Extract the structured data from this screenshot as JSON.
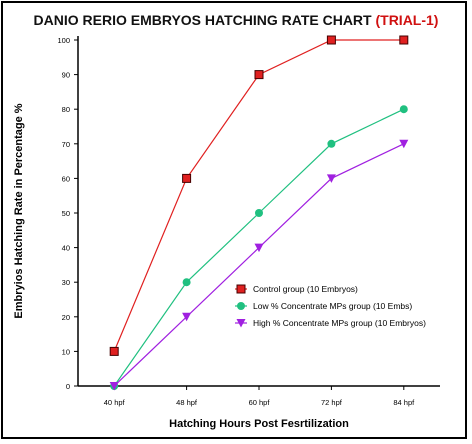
{
  "chart_data": {
    "type": "line",
    "title": "DANIO RERIO EMBRYOS HATCHING RATE CHART",
    "title_suffix": "(TRIAL-1)",
    "xlabel": "Hatching Hours Post  Fesrtilization",
    "ylabel": "Embryios Hatching Rate in Percentage %",
    "categories": [
      "40 hpf",
      "48 hpf",
      "60 hpf",
      "72 hpf",
      "84 hpf"
    ],
    "ylim": [
      0,
      100
    ],
    "yticks": [
      0,
      10,
      20,
      30,
      40,
      50,
      60,
      70,
      80,
      90,
      100
    ],
    "grid": false,
    "legend_position": "lower-right",
    "series": [
      {
        "name": "Control group (10 Embryos)",
        "values": [
          10,
          60,
          90,
          100,
          100
        ],
        "color": "#e02020",
        "marker": "square"
      },
      {
        "name": "Low % Concentrate MPs group (10 Embs)",
        "values": [
          0,
          30,
          50,
          70,
          80
        ],
        "color": "#20c080",
        "marker": "circle"
      },
      {
        "name": "High % Concentrate MPs group (10 Embryos)",
        "values": [
          0,
          20,
          40,
          60,
          70
        ],
        "color": "#a020e0",
        "marker": "triangle-down"
      }
    ]
  }
}
